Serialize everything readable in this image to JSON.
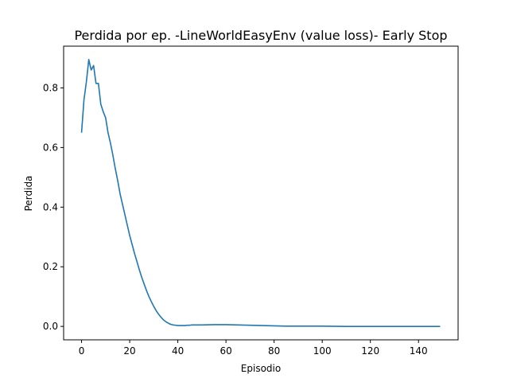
{
  "chart_data": {
    "type": "line",
    "title": "Perdida por ep. -LineWorldEasyEnv (value loss)- Early Stop",
    "xlabel": "Episodio",
    "ylabel": "Perdida",
    "xlim": [
      -7.45,
      156.45
    ],
    "ylim": [
      -0.045,
      0.94
    ],
    "xticks": [
      0,
      20,
      40,
      60,
      80,
      100,
      120,
      140
    ],
    "xtick_labels": [
      "0",
      "20",
      "40",
      "60",
      "80",
      "100",
      "120",
      "140"
    ],
    "yticks": [
      0.0,
      0.2,
      0.4,
      0.6,
      0.8
    ],
    "ytick_labels": [
      "0.0",
      "0.2",
      "0.4",
      "0.6",
      "0.8"
    ],
    "grid": false,
    "color": "#1f77b4",
    "series": [
      {
        "name": "",
        "x": [
          0,
          1,
          2,
          3,
          4,
          5,
          6,
          7,
          8,
          9,
          10,
          11,
          12,
          13,
          14,
          15,
          16,
          17,
          18,
          19,
          20,
          21,
          22,
          23,
          24,
          25,
          26,
          27,
          28,
          29,
          30,
          31,
          32,
          33,
          34,
          35,
          36,
          37,
          38,
          39,
          40,
          41,
          42,
          43,
          44,
          45,
          46,
          47,
          48,
          49,
          50,
          55,
          60,
          65,
          70,
          75,
          80,
          85,
          90,
          95,
          100,
          110,
          120,
          130,
          140,
          149
        ],
        "y": [
          0.65,
          0.76,
          0.82,
          0.895,
          0.86,
          0.875,
          0.815,
          0.815,
          0.745,
          0.72,
          0.7,
          0.65,
          0.615,
          0.575,
          0.53,
          0.49,
          0.445,
          0.41,
          0.375,
          0.34,
          0.305,
          0.275,
          0.245,
          0.218,
          0.19,
          0.165,
          0.142,
          0.12,
          0.1,
          0.083,
          0.067,
          0.053,
          0.041,
          0.031,
          0.022,
          0.016,
          0.011,
          0.007,
          0.005,
          0.004,
          0.003,
          0.003,
          0.003,
          0.003,
          0.004,
          0.004,
          0.005,
          0.005,
          0.005,
          0.005,
          0.005,
          0.006,
          0.006,
          0.005,
          0.004,
          0.003,
          0.002,
          0.001,
          0.001,
          0.001,
          0.001,
          0.0,
          0.0,
          0.0,
          0.0,
          0.0
        ]
      }
    ]
  }
}
